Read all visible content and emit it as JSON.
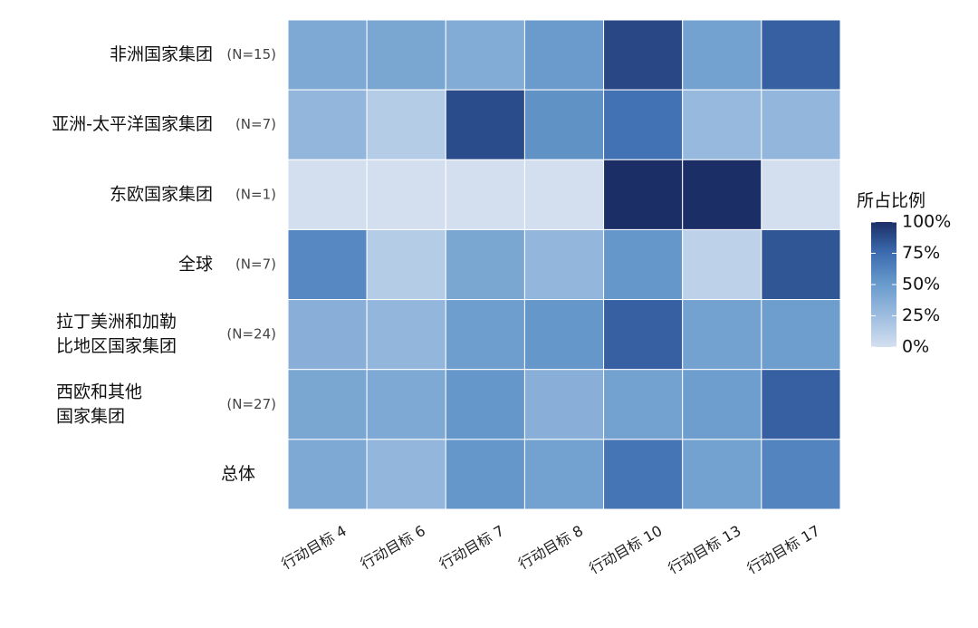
{
  "chart_data": {
    "type": "heatmap",
    "x_categories": [
      "行动目标 4",
      "行动目标 6",
      "行动目标 7",
      "行动目标 8",
      "行动目标 10",
      "行动目标 13",
      "行动目标 17"
    ],
    "y_categories": [
      [
        "非洲国家集团"
      ],
      [
        "亚洲-太平洋国家集团"
      ],
      [
        "东欧国家集团"
      ],
      [
        "全球"
      ],
      [
        "拉丁美洲和加勒",
        "比地区国家集团"
      ],
      [
        "西欧和其他",
        "国家集团"
      ],
      [
        "总体"
      ]
    ],
    "y_notes": [
      "(N=15)",
      "(N=7)",
      "(N=1)",
      "(N=7)",
      "(N=24)",
      "(N=27)",
      null
    ],
    "values": [
      [
        40,
        42,
        38,
        50,
        90,
        45,
        80
      ],
      [
        30,
        14,
        88,
        55,
        72,
        28,
        30
      ],
      [
        0,
        0,
        0,
        0,
        100,
        100,
        0
      ],
      [
        60,
        14,
        42,
        30,
        52,
        10,
        84
      ],
      [
        35,
        30,
        48,
        52,
        80,
        45,
        48
      ],
      [
        42,
        40,
        52,
        35,
        45,
        48,
        80
      ],
      [
        40,
        30,
        52,
        45,
        70,
        45,
        62
      ]
    ],
    "colorscale": [
      "#d3dfef",
      "#9dbde0",
      "#6a9bcc",
      "#3d6cb0",
      "#1b2f66"
    ],
    "legend_title": "所占比例",
    "clim": [
      0,
      100
    ],
    "cticks": [
      {
        "value": 0,
        "label": "0%"
      },
      {
        "value": 25,
        "label": "25%"
      },
      {
        "value": 50,
        "label": "50%"
      },
      {
        "value": 75,
        "label": "75%"
      },
      {
        "value": 100,
        "label": "100%"
      }
    ]
  }
}
